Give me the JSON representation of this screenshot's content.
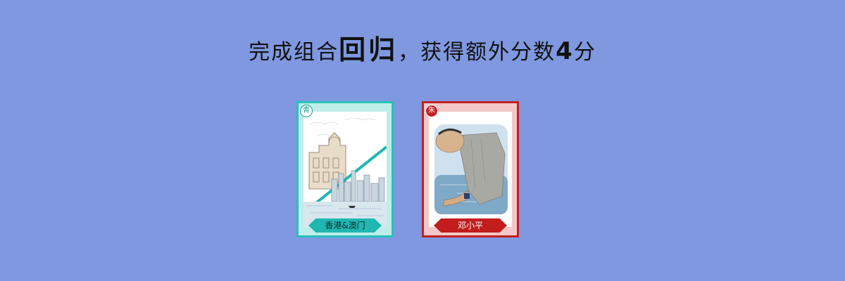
{
  "banner": {
    "prefix": "完成组合",
    "combo_name": "回归",
    "middle": "，获得额外分数",
    "bonus_points": "4",
    "suffix": "分"
  },
  "cards": [
    {
      "corner_label": "青",
      "title": "香港&澳门"
    },
    {
      "corner_label": "朱",
      "title": "邓小平"
    }
  ],
  "colors": {
    "background": "#7f98e0",
    "teal_card": "#29c1bb",
    "red_card": "#c22020"
  }
}
